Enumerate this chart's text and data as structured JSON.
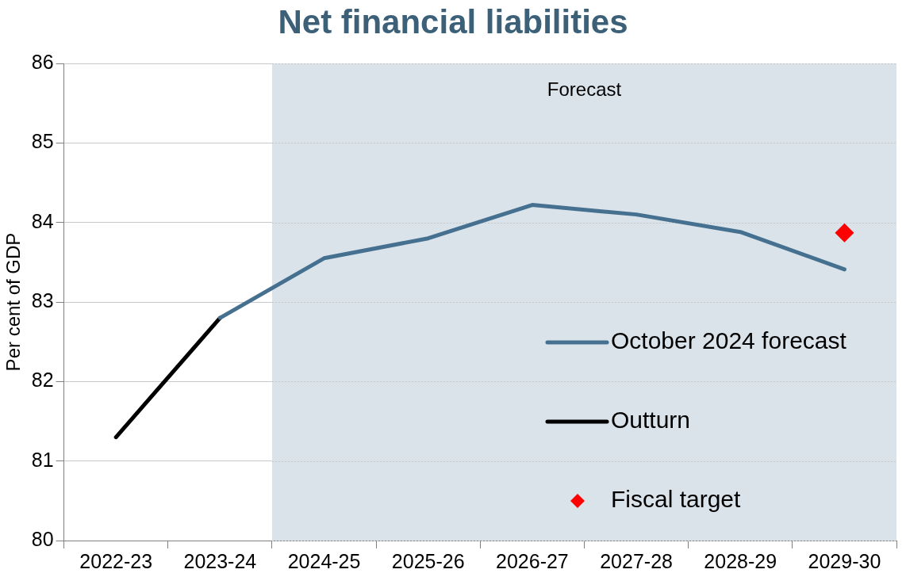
{
  "chart_data": {
    "type": "line",
    "title": "Net financial liabilities",
    "ylabel": "Per cent of GDP",
    "categories": [
      "2022-23",
      "2023-24",
      "2024-25",
      "2025-26",
      "2026-27",
      "2027-28",
      "2028-29",
      "2029-30"
    ],
    "series": [
      {
        "name": "October 2024 forecast",
        "color": "#45708f",
        "values": [
          null,
          82.8,
          83.55,
          83.8,
          84.22,
          84.1,
          83.88,
          83.41
        ]
      },
      {
        "name": "Outturn",
        "color": "#000000",
        "values": [
          81.3,
          82.8,
          null,
          null,
          null,
          null,
          null,
          null
        ]
      },
      {
        "name": "Fiscal target",
        "color": "#ff0000",
        "type": "scatter",
        "marker": "diamond",
        "values": [
          null,
          null,
          null,
          null,
          null,
          null,
          null,
          83.87
        ]
      }
    ],
    "bands": [
      {
        "axis": "x",
        "from": "2024-25",
        "to": "2029-30",
        "label": "Forecast",
        "color": "#dae2ea"
      }
    ],
    "ylim": [
      80,
      86
    ],
    "yticks": [
      80,
      81,
      82,
      83,
      84,
      85,
      86
    ],
    "grid": "y",
    "legend": "bottom right",
    "marker": "none",
    "line_style": "solid"
  }
}
